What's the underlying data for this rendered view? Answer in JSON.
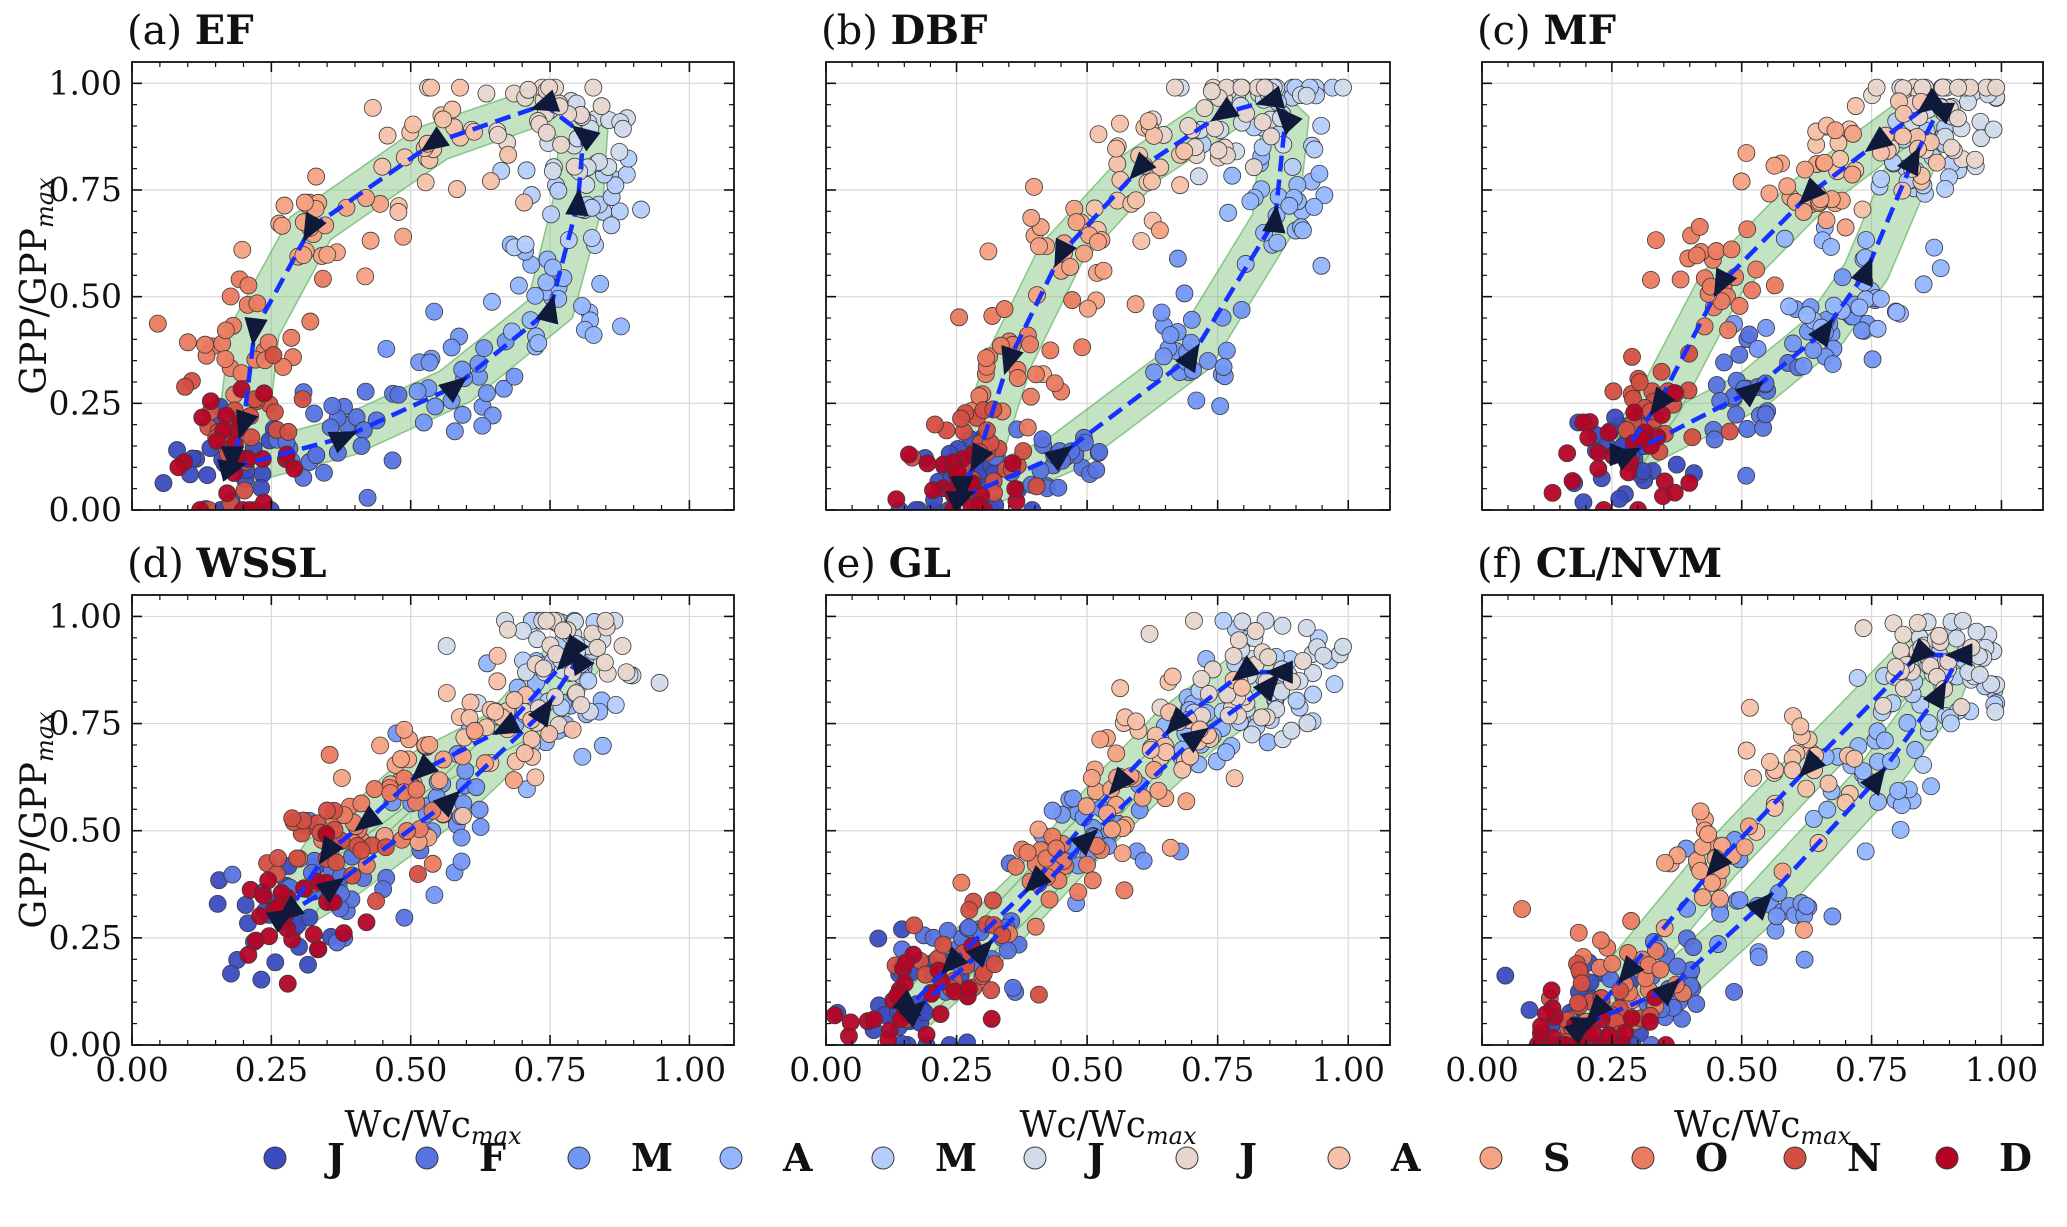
{
  "figure": {
    "ylabel": "GPP/GPP",
    "ylabel_sub": "max",
    "xlabel": "Wc/Wc",
    "xlabel_sub": "max"
  },
  "legend": {
    "items": [
      {
        "label": "J",
        "color": "#3b4cc0"
      },
      {
        "label": "F",
        "color": "#5673e0"
      },
      {
        "label": "M",
        "color": "#7396f5"
      },
      {
        "label": "A",
        "color": "#94b6ff"
      },
      {
        "label": "M",
        "color": "#b5cdfa"
      },
      {
        "label": "J",
        "color": "#d1dae9"
      },
      {
        "label": "J",
        "color": "#e8d6cc"
      },
      {
        "label": "A",
        "color": "#f5c1a9"
      },
      {
        "label": "S",
        "color": "#f6a283"
      },
      {
        "label": "O",
        "color": "#ea7b60"
      },
      {
        "label": "N",
        "color": "#d44e41"
      },
      {
        "label": "D",
        "color": "#b40426"
      }
    ]
  },
  "chart_data": [
    {
      "type": "scatter",
      "id": "a",
      "prefix": "(a)",
      "title": "EF",
      "xlim": [
        0,
        1.08
      ],
      "ylim": [
        0,
        1.05
      ],
      "xticks": [
        "0.00",
        "0.25",
        "0.50",
        "0.75",
        "1.00"
      ],
      "yticks": [
        "0.00",
        "0.25",
        "0.50",
        "0.75",
        "1.00"
      ],
      "grid": true,
      "monthly_mean_trajectory": [
        {
          "month": "Jan",
          "x": 0.18,
          "y": 0.1
        },
        {
          "month": "Feb",
          "x": 0.38,
          "y": 0.17
        },
        {
          "month": "Mar",
          "x": 0.58,
          "y": 0.29
        },
        {
          "month": "Apr",
          "x": 0.75,
          "y": 0.47
        },
        {
          "month": "May",
          "x": 0.8,
          "y": 0.72
        },
        {
          "month": "Jun",
          "x": 0.81,
          "y": 0.88
        },
        {
          "month": "Jul",
          "x": 0.74,
          "y": 0.95
        },
        {
          "month": "Aug",
          "x": 0.54,
          "y": 0.86
        },
        {
          "month": "Sep",
          "x": 0.32,
          "y": 0.66
        },
        {
          "month": "Oct",
          "x": 0.22,
          "y": 0.42
        },
        {
          "month": "Nov",
          "x": 0.2,
          "y": 0.2
        },
        {
          "month": "Dec",
          "x": 0.18,
          "y": 0.12
        }
      ]
    },
    {
      "type": "scatter",
      "id": "b",
      "prefix": "(b)",
      "title": "DBF",
      "xlim": [
        0,
        1.08
      ],
      "ylim": [
        0,
        1.05
      ],
      "xticks": [
        "0.00",
        "0.25",
        "0.50",
        "0.75",
        "1.00"
      ],
      "yticks": [
        "0.00",
        "0.25",
        "0.50",
        "0.75",
        "1.00"
      ],
      "grid": true,
      "monthly_mean_trajectory": [
        {
          "month": "Jan",
          "x": 0.26,
          "y": 0.03
        },
        {
          "month": "Feb",
          "x": 0.45,
          "y": 0.13
        },
        {
          "month": "Mar",
          "x": 0.7,
          "y": 0.36
        },
        {
          "month": "Apr",
          "x": 0.86,
          "y": 0.68
        },
        {
          "month": "May",
          "x": 0.88,
          "y": 0.92
        },
        {
          "month": "Jun",
          "x": 0.85,
          "y": 0.96
        },
        {
          "month": "Jul",
          "x": 0.76,
          "y": 0.93
        },
        {
          "month": "Aug",
          "x": 0.6,
          "y": 0.8
        },
        {
          "month": "Sep",
          "x": 0.45,
          "y": 0.6
        },
        {
          "month": "Oct",
          "x": 0.35,
          "y": 0.35
        },
        {
          "month": "Nov",
          "x": 0.29,
          "y": 0.12
        },
        {
          "month": "Dec",
          "x": 0.26,
          "y": 0.05
        }
      ]
    },
    {
      "type": "scatter",
      "id": "c",
      "prefix": "(c)",
      "title": "MF",
      "xlim": [
        0,
        1.08
      ],
      "ylim": [
        0,
        1.05
      ],
      "xticks": [
        "0.00",
        "0.25",
        "0.50",
        "0.75",
        "1.00"
      ],
      "yticks": [
        "0.00",
        "0.25",
        "0.50",
        "0.75",
        "1.00"
      ],
      "grid": true,
      "monthly_mean_trajectory": [
        {
          "month": "Jan",
          "x": 0.28,
          "y": 0.13
        },
        {
          "month": "Feb",
          "x": 0.52,
          "y": 0.28
        },
        {
          "month": "Mar",
          "x": 0.66,
          "y": 0.42
        },
        {
          "month": "Apr",
          "x": 0.74,
          "y": 0.56
        },
        {
          "month": "May",
          "x": 0.83,
          "y": 0.82
        },
        {
          "month": "Jun",
          "x": 0.88,
          "y": 0.94
        },
        {
          "month": "Jul",
          "x": 0.86,
          "y": 0.95
        },
        {
          "month": "Aug",
          "x": 0.76,
          "y": 0.86
        },
        {
          "month": "Sep",
          "x": 0.63,
          "y": 0.74
        },
        {
          "month": "Oct",
          "x": 0.46,
          "y": 0.53
        },
        {
          "month": "Nov",
          "x": 0.34,
          "y": 0.25
        },
        {
          "month": "Dec",
          "x": 0.27,
          "y": 0.13
        }
      ]
    },
    {
      "type": "scatter",
      "id": "d",
      "prefix": "(d)",
      "title": "WSSL",
      "xlim": [
        0,
        1.08
      ],
      "ylim": [
        0,
        1.05
      ],
      "xticks": [
        "0.00",
        "0.25",
        "0.50",
        "0.75",
        "1.00"
      ],
      "yticks": [
        "0.00",
        "0.25",
        "0.50",
        "0.75",
        "1.00"
      ],
      "grid": true,
      "monthly_mean_trajectory": [
        {
          "month": "Jan",
          "x": 0.27,
          "y": 0.3
        },
        {
          "month": "Feb",
          "x": 0.36,
          "y": 0.37
        },
        {
          "month": "Mar",
          "x": 0.57,
          "y": 0.57
        },
        {
          "month": "Apr",
          "x": 0.74,
          "y": 0.78
        },
        {
          "month": "May",
          "x": 0.8,
          "y": 0.9
        },
        {
          "month": "Jun",
          "x": 0.79,
          "y": 0.92
        },
        {
          "month": "Jul",
          "x": 0.78,
          "y": 0.9
        },
        {
          "month": "Aug",
          "x": 0.67,
          "y": 0.74
        },
        {
          "month": "Sep",
          "x": 0.52,
          "y": 0.64
        },
        {
          "month": "Oct",
          "x": 0.42,
          "y": 0.52
        },
        {
          "month": "Nov",
          "x": 0.35,
          "y": 0.45
        },
        {
          "month": "Dec",
          "x": 0.28,
          "y": 0.31
        }
      ]
    },
    {
      "type": "scatter",
      "id": "e",
      "prefix": "(e)",
      "title": "GL",
      "xlim": [
        0,
        1.08
      ],
      "ylim": [
        0,
        1.05
      ],
      "xticks": [
        "0.00",
        "0.25",
        "0.50",
        "0.75",
        "1.00"
      ],
      "yticks": [
        "0.00",
        "0.25",
        "0.50",
        "0.75",
        "1.00"
      ],
      "grid": true,
      "monthly_mean_trajectory": [
        {
          "month": "Jan",
          "x": 0.17,
          "y": 0.08
        },
        {
          "month": "Feb",
          "x": 0.3,
          "y": 0.22
        },
        {
          "month": "Mar",
          "x": 0.5,
          "y": 0.48
        },
        {
          "month": "Apr",
          "x": 0.71,
          "y": 0.72
        },
        {
          "month": "May",
          "x": 0.85,
          "y": 0.84
        },
        {
          "month": "Jun",
          "x": 0.87,
          "y": 0.87
        },
        {
          "month": "Jul",
          "x": 0.8,
          "y": 0.87
        },
        {
          "month": "Aug",
          "x": 0.67,
          "y": 0.75
        },
        {
          "month": "Sep",
          "x": 0.56,
          "y": 0.61
        },
        {
          "month": "Oct",
          "x": 0.4,
          "y": 0.38
        },
        {
          "month": "Nov",
          "x": 0.24,
          "y": 0.19
        },
        {
          "month": "Dec",
          "x": 0.16,
          "y": 0.09
        }
      ]
    },
    {
      "type": "scatter",
      "id": "f",
      "prefix": "(f)",
      "title": "CL/NVM",
      "xlim": [
        0,
        1.08
      ],
      "ylim": [
        0,
        1.05
      ],
      "xticks": [
        "0.00",
        "0.25",
        "0.50",
        "0.75",
        "1.00"
      ],
      "yticks": [
        "0.00",
        "0.25",
        "0.50",
        "0.75",
        "1.00"
      ],
      "grid": true,
      "monthly_mean_trajectory": [
        {
          "month": "Jan",
          "x": 0.2,
          "y": 0.05
        },
        {
          "month": "Feb",
          "x": 0.36,
          "y": 0.13
        },
        {
          "month": "Mar",
          "x": 0.54,
          "y": 0.33
        },
        {
          "month": "Apr",
          "x": 0.76,
          "y": 0.62
        },
        {
          "month": "May",
          "x": 0.88,
          "y": 0.82
        },
        {
          "month": "Jun",
          "x": 0.92,
          "y": 0.91
        },
        {
          "month": "Jul",
          "x": 0.84,
          "y": 0.91
        },
        {
          "month": "Aug",
          "x": 0.63,
          "y": 0.65
        },
        {
          "month": "Sep",
          "x": 0.45,
          "y": 0.42
        },
        {
          "month": "Oct",
          "x": 0.28,
          "y": 0.17
        },
        {
          "month": "Nov",
          "x": 0.22,
          "y": 0.08
        },
        {
          "month": "Dec",
          "x": 0.19,
          "y": 0.04
        }
      ]
    }
  ]
}
